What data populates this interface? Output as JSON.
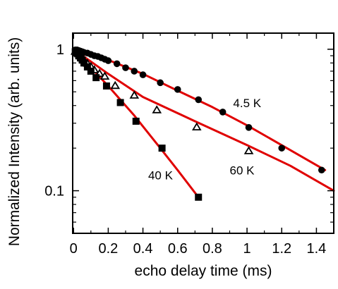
{
  "chart_data": {
    "type": "scatter",
    "title": "",
    "xlabel": "echo delay time (ms)",
    "ylabel": "Normalized Intensity (arb. units)",
    "xlim": [
      -0.005,
      1.5
    ],
    "ylim": [
      0.05,
      1.3
    ],
    "yscale": "log",
    "grid": false,
    "legend": "none",
    "fit_line_color": "#e00000",
    "marker_color": "#000000",
    "x_ticks": [
      0,
      0.2,
      0.4,
      0.6,
      0.8,
      1,
      1.2,
      1.4
    ],
    "x_tick_labels": [
      "0",
      "0.2",
      "0.4",
      "0.6",
      "0.8",
      "1",
      "1.2",
      "1.4"
    ],
    "y_ticks": [
      0.1,
      1
    ],
    "y_tick_labels": [
      "0.1",
      "1"
    ],
    "series": [
      {
        "name": "4.5 K",
        "marker": "filled-circle",
        "x": [
          0.01,
          0.02,
          0.03,
          0.04,
          0.05,
          0.06,
          0.08,
          0.1,
          0.12,
          0.14,
          0.16,
          0.18,
          0.2,
          0.25,
          0.3,
          0.35,
          0.4,
          0.5,
          0.6,
          0.72,
          0.86,
          1.01,
          1.2,
          1.43
        ],
        "y": [
          0.99,
          0.99,
          0.98,
          0.97,
          0.96,
          0.95,
          0.94,
          0.92,
          0.9,
          0.89,
          0.87,
          0.85,
          0.83,
          0.79,
          0.74,
          0.7,
          0.66,
          0.58,
          0.52,
          0.44,
          0.36,
          0.28,
          0.2,
          0.14
        ],
        "fit": [
          [
            0,
            1.0
          ],
          [
            0.1,
            0.93
          ],
          [
            0.2,
            0.84
          ],
          [
            0.4,
            0.67
          ],
          [
            0.6,
            0.51
          ],
          [
            0.8,
            0.39
          ],
          [
            1.0,
            0.29
          ],
          [
            1.2,
            0.21
          ],
          [
            1.45,
            0.14
          ]
        ]
      },
      {
        "name": "60 K",
        "marker": "open-triangle",
        "x": [
          0.01,
          0.02,
          0.03,
          0.04,
          0.05,
          0.06,
          0.08,
          0.1,
          0.12,
          0.15,
          0.18,
          0.24,
          0.35,
          0.48,
          0.71,
          1.01
        ],
        "y": [
          0.96,
          0.94,
          0.92,
          0.89,
          0.86,
          0.83,
          0.79,
          0.75,
          0.71,
          0.67,
          0.64,
          0.55,
          0.47,
          0.37,
          0.28,
          0.19
        ],
        "fit": [
          [
            0,
            1.0
          ],
          [
            0.2,
            0.67
          ],
          [
            0.4,
            0.46
          ],
          [
            0.7,
            0.31
          ],
          [
            1.0,
            0.21
          ],
          [
            1.25,
            0.15
          ],
          [
            1.5,
            0.1
          ]
        ]
      },
      {
        "name": "40 K",
        "marker": "filled-square",
        "x": [
          0.01,
          0.02,
          0.03,
          0.04,
          0.05,
          0.06,
          0.08,
          0.1,
          0.13,
          0.19,
          0.27,
          0.36,
          0.51,
          0.72
        ],
        "y": [
          0.96,
          0.94,
          0.9,
          0.87,
          0.84,
          0.8,
          0.75,
          0.7,
          0.63,
          0.55,
          0.42,
          0.31,
          0.2,
          0.09
        ],
        "fit": [
          [
            0,
            1.0
          ],
          [
            0.2,
            0.55
          ],
          [
            0.35,
            0.34
          ],
          [
            0.5,
            0.2
          ],
          [
            0.6,
            0.14
          ],
          [
            0.72,
            0.09
          ]
        ]
      }
    ],
    "annotations": [
      {
        "text": "4.5 K",
        "x": 0.92,
        "y": 0.39
      },
      {
        "text": "60 K",
        "x": 0.9,
        "y": 0.13
      },
      {
        "text": "40 K",
        "x": 0.43,
        "y": 0.12
      }
    ]
  }
}
